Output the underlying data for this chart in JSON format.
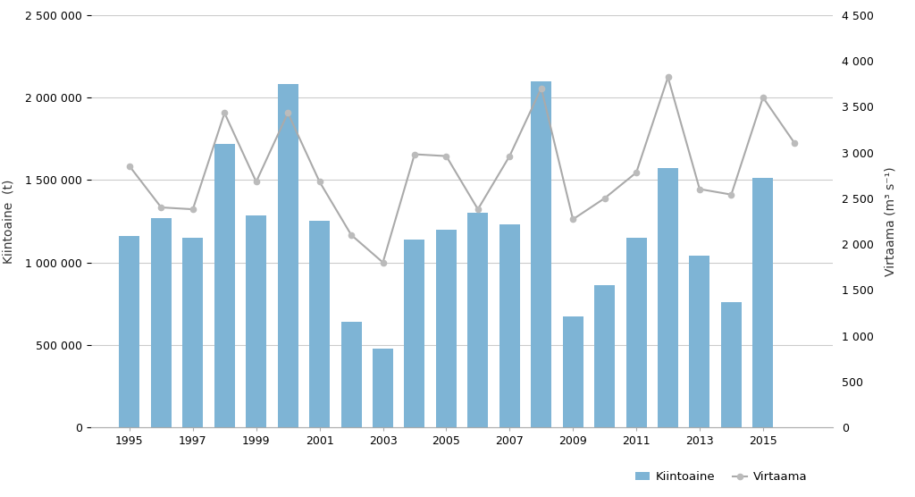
{
  "years": [
    1995,
    1996,
    1997,
    1998,
    1999,
    2000,
    2001,
    2002,
    2003,
    2004,
    2005,
    2006,
    2007,
    2008,
    2009,
    2010,
    2011,
    2012,
    2013,
    2014,
    2015,
    2016
  ],
  "kiintoaine": [
    1160000,
    1270000,
    1150000,
    1720000,
    1285000,
    2080000,
    1250000,
    640000,
    480000,
    1140000,
    1200000,
    1300000,
    1230000,
    2100000,
    670000,
    860000,
    1150000,
    1570000,
    1040000,
    760000,
    1510000,
    null
  ],
  "virtaama": [
    2850,
    2400,
    2380,
    3430,
    2680,
    3430,
    2680,
    2100,
    1800,
    2980,
    2960,
    2380,
    2960,
    3700,
    2270,
    2500,
    2780,
    3820,
    2600,
    2540,
    3600,
    3100
  ],
  "bar_color": "#7EB4D5",
  "line_color": "#AAAAAA",
  "marker_color": "#BBBBBB",
  "ylabel_left": "Kiintoaine  (t)",
  "ylabel_right": "Virtaama (m³ s⁻¹)",
  "ylim_left": [
    0,
    2500000
  ],
  "ylim_right": [
    0,
    4500
  ],
  "yticks_left": [
    0,
    500000,
    1000000,
    1500000,
    2000000,
    2500000
  ],
  "yticks_right": [
    0,
    500,
    1000,
    1500,
    2000,
    2500,
    3000,
    3500,
    4000,
    4500
  ],
  "legend_labels": [
    "Kiintoaine",
    "Virtaama"
  ],
  "background_color": "#FFFFFF",
  "plot_bg_color": "#FFFFFF",
  "grid_color": "#CCCCCC",
  "spine_color": "#AAAAAA",
  "tick_color": "#555555",
  "font_color": "#333333"
}
